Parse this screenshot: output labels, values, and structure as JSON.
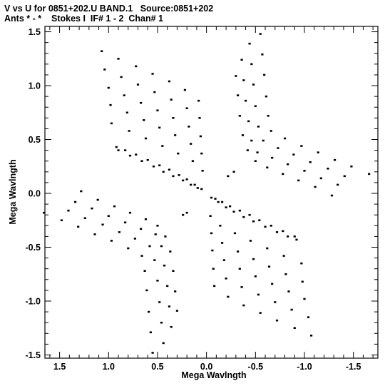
{
  "chart_data": {
    "type": "scatter",
    "title": "V vs U for 0851+202.U BAND.1   Source:0851+202",
    "subtitle": "Ants * - *    Stokes I  IF# 1 - 2  Chan# 1",
    "xlabel": "Mega Wavlngth",
    "ylabel": "Mega Wavlngth",
    "xlim": [
      1.65,
      -1.75
    ],
    "ylim": [
      -1.53,
      1.55
    ],
    "xticks": [
      1.5,
      1.0,
      0.5,
      0.0,
      -0.5,
      -1.0,
      -1.5
    ],
    "xtick_labels": [
      "1.5",
      "1.0",
      "0.5",
      "0.0",
      "-0.5",
      "-1.0",
      "-1.5"
    ],
    "yticks": [
      1.5,
      1.0,
      0.5,
      0.0,
      -0.5,
      -1.0,
      -1.5
    ],
    "ytick_labels": [
      "1.5",
      "1.0",
      "0.5",
      "0.0",
      "-0.5",
      "-1.0",
      "-1.5"
    ],
    "grid": false,
    "point_color": "#000000",
    "series": [
      {
        "points": [
          [
            1.07,
            1.32
          ],
          [
            0.9,
            1.25
          ],
          [
            0.72,
            1.18
          ],
          [
            0.55,
            1.11
          ],
          [
            0.38,
            1.04
          ],
          [
            0.22,
            0.96
          ],
          [
            0.08,
            0.86
          ],
          [
            1.04,
            1.15
          ],
          [
            0.87,
            1.08
          ],
          [
            0.7,
            1.01
          ],
          [
            0.53,
            0.94
          ],
          [
            0.36,
            0.87
          ],
          [
            0.2,
            0.79
          ],
          [
            0.07,
            0.7
          ],
          [
            1.0,
            0.98
          ],
          [
            0.84,
            0.91
          ],
          [
            0.67,
            0.84
          ],
          [
            0.5,
            0.77
          ],
          [
            0.34,
            0.7
          ],
          [
            0.18,
            0.62
          ],
          [
            0.06,
            0.53
          ],
          [
            0.98,
            0.82
          ],
          [
            0.81,
            0.75
          ],
          [
            0.64,
            0.68
          ],
          [
            0.48,
            0.61
          ],
          [
            0.32,
            0.54
          ],
          [
            0.16,
            0.46
          ],
          [
            0.05,
            0.37
          ],
          [
            0.97,
            0.65
          ],
          [
            0.79,
            0.58
          ],
          [
            0.62,
            0.51
          ],
          [
            0.45,
            0.44
          ],
          [
            0.29,
            0.37
          ],
          [
            0.14,
            0.3
          ],
          [
            0.04,
            0.21
          ],
          [
            0.92,
            0.43
          ],
          [
            0.83,
            0.4
          ],
          [
            0.72,
            0.36
          ],
          [
            0.6,
            0.31
          ],
          [
            0.48,
            0.26
          ],
          [
            0.38,
            0.22
          ],
          [
            0.28,
            0.17
          ],
          [
            0.2,
            0.13
          ],
          [
            0.12,
            0.08
          ],
          [
            0.05,
            0.04
          ],
          [
            0.9,
            0.4
          ],
          [
            0.78,
            0.35
          ],
          [
            0.66,
            0.3
          ],
          [
            0.54,
            0.25
          ],
          [
            0.44,
            0.2
          ],
          [
            0.34,
            0.16
          ],
          [
            0.24,
            0.12
          ],
          [
            0.16,
            0.08
          ],
          [
            0.09,
            0.05
          ],
          [
            -1.07,
            -1.32
          ],
          [
            -0.9,
            -1.25
          ],
          [
            -0.72,
            -1.18
          ],
          [
            -0.55,
            -1.11
          ],
          [
            -0.38,
            -1.04
          ],
          [
            -0.22,
            -0.96
          ],
          [
            -0.08,
            -0.86
          ],
          [
            -1.04,
            -1.15
          ],
          [
            -0.87,
            -1.08
          ],
          [
            -0.7,
            -1.01
          ],
          [
            -0.53,
            -0.94
          ],
          [
            -0.36,
            -0.87
          ],
          [
            -0.2,
            -0.79
          ],
          [
            -0.07,
            -0.7
          ],
          [
            -1.0,
            -0.98
          ],
          [
            -0.84,
            -0.91
          ],
          [
            -0.67,
            -0.84
          ],
          [
            -0.5,
            -0.77
          ],
          [
            -0.34,
            -0.7
          ],
          [
            -0.18,
            -0.62
          ],
          [
            -0.06,
            -0.53
          ],
          [
            -0.98,
            -0.82
          ],
          [
            -0.81,
            -0.75
          ],
          [
            -0.64,
            -0.68
          ],
          [
            -0.48,
            -0.61
          ],
          [
            -0.32,
            -0.54
          ],
          [
            -0.16,
            -0.46
          ],
          [
            -0.05,
            -0.37
          ],
          [
            -0.97,
            -0.65
          ],
          [
            -0.79,
            -0.58
          ],
          [
            -0.62,
            -0.51
          ],
          [
            -0.45,
            -0.44
          ],
          [
            -0.29,
            -0.37
          ],
          [
            -0.14,
            -0.3
          ],
          [
            -0.04,
            -0.21
          ],
          [
            -0.92,
            -0.43
          ],
          [
            -0.83,
            -0.4
          ],
          [
            -0.72,
            -0.36
          ],
          [
            -0.6,
            -0.31
          ],
          [
            -0.48,
            -0.26
          ],
          [
            -0.38,
            -0.22
          ],
          [
            -0.28,
            -0.17
          ],
          [
            -0.2,
            -0.13
          ],
          [
            -0.12,
            -0.08
          ],
          [
            -0.05,
            -0.04
          ],
          [
            -0.9,
            -0.4
          ],
          [
            -0.78,
            -0.35
          ],
          [
            -0.66,
            -0.3
          ],
          [
            -0.54,
            -0.25
          ],
          [
            -0.44,
            -0.2
          ],
          [
            -0.34,
            -0.16
          ],
          [
            -0.24,
            -0.12
          ],
          [
            -0.16,
            -0.08
          ],
          [
            -0.09,
            -0.05
          ],
          [
            -0.55,
            1.48
          ],
          [
            -0.57,
            1.29
          ],
          [
            -0.59,
            1.1
          ],
          [
            -0.61,
            0.9
          ],
          [
            -0.63,
            0.72
          ],
          [
            -0.66,
            0.58
          ],
          [
            -0.8,
            0.51
          ],
          [
            -0.97,
            0.44
          ],
          [
            -1.14,
            0.38
          ],
          [
            -1.31,
            0.31
          ],
          [
            -1.48,
            0.25
          ],
          [
            -1.66,
            0.18
          ],
          [
            -0.44,
            1.39
          ],
          [
            -0.46,
            1.2
          ],
          [
            -0.48,
            1.01
          ],
          [
            -0.5,
            0.81
          ],
          [
            -0.53,
            0.62
          ],
          [
            -0.58,
            0.49
          ],
          [
            -0.73,
            0.42
          ],
          [
            -0.89,
            0.36
          ],
          [
            -1.06,
            0.29
          ],
          [
            -1.24,
            0.23
          ],
          [
            -1.41,
            0.16
          ],
          [
            -0.36,
            1.24
          ],
          [
            -0.38,
            1.05
          ],
          [
            -0.4,
            0.86
          ],
          [
            -0.43,
            0.67
          ],
          [
            -0.46,
            0.49
          ],
          [
            -0.52,
            0.38
          ],
          [
            -0.67,
            0.33
          ],
          [
            -0.83,
            0.27
          ],
          [
            -1.0,
            0.21
          ],
          [
            -1.17,
            0.14
          ],
          [
            -1.34,
            0.08
          ],
          [
            -0.3,
            1.09
          ],
          [
            -0.32,
            0.91
          ],
          [
            -0.34,
            0.72
          ],
          [
            -0.37,
            0.54
          ],
          [
            -0.42,
            0.4
          ],
          [
            -0.5,
            0.3
          ],
          [
            -0.62,
            0.24
          ],
          [
            -0.78,
            0.18
          ],
          [
            -0.94,
            0.12
          ],
          [
            -1.11,
            0.06
          ],
          [
            -1.28,
            -0.02
          ],
          [
            0.55,
            -1.48
          ],
          [
            0.57,
            -1.29
          ],
          [
            0.59,
            -1.1
          ],
          [
            0.61,
            -0.9
          ],
          [
            0.63,
            -0.72
          ],
          [
            0.66,
            -0.58
          ],
          [
            0.8,
            -0.51
          ],
          [
            0.97,
            -0.44
          ],
          [
            1.14,
            -0.38
          ],
          [
            1.31,
            -0.31
          ],
          [
            1.48,
            -0.25
          ],
          [
            1.66,
            -0.18
          ],
          [
            0.44,
            -1.39
          ],
          [
            0.46,
            -1.2
          ],
          [
            0.48,
            -1.01
          ],
          [
            0.5,
            -0.81
          ],
          [
            0.53,
            -0.62
          ],
          [
            0.58,
            -0.49
          ],
          [
            0.73,
            -0.42
          ],
          [
            0.89,
            -0.36
          ],
          [
            1.06,
            -0.29
          ],
          [
            1.24,
            -0.23
          ],
          [
            1.41,
            -0.16
          ],
          [
            0.36,
            -1.24
          ],
          [
            0.38,
            -1.05
          ],
          [
            0.4,
            -0.86
          ],
          [
            0.43,
            -0.67
          ],
          [
            0.46,
            -0.49
          ],
          [
            0.52,
            -0.38
          ],
          [
            0.67,
            -0.33
          ],
          [
            0.83,
            -0.27
          ],
          [
            1.0,
            -0.21
          ],
          [
            1.17,
            -0.14
          ],
          [
            1.34,
            -0.08
          ],
          [
            0.3,
            -1.09
          ],
          [
            0.32,
            -0.91
          ],
          [
            0.34,
            -0.72
          ],
          [
            0.37,
            -0.54
          ],
          [
            0.42,
            -0.4
          ],
          [
            0.5,
            -0.3
          ],
          [
            0.62,
            -0.24
          ],
          [
            0.78,
            -0.18
          ],
          [
            0.94,
            -0.12
          ],
          [
            1.11,
            -0.06
          ],
          [
            1.28,
            0.02
          ],
          [
            -0.28,
            0.2
          ],
          [
            0.24,
            -0.2
          ],
          [
            -0.22,
            0.16
          ],
          [
            0.2,
            -0.18
          ]
        ]
      }
    ]
  }
}
